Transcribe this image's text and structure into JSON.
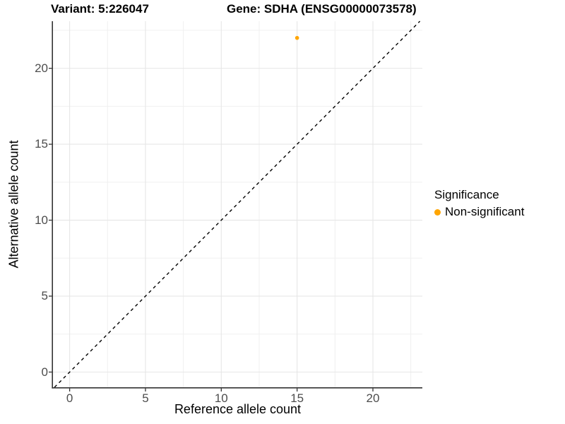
{
  "header": {
    "variant_title": "Variant: 5:226047",
    "gene_title": "Gene: SDHA (ENSG00000073578)"
  },
  "chart_data": {
    "type": "scatter",
    "title_left": "Variant: 5:226047",
    "title_right": "Gene: SDHA (ENSG00000073578)",
    "xlabel": "Reference allele count",
    "ylabel": "Alternative allele count",
    "x_ticks": [
      0,
      5,
      10,
      15,
      20
    ],
    "y_ticks": [
      0,
      5,
      10,
      15,
      20
    ],
    "xlim": [
      -1.1,
      23.26
    ],
    "ylim": [
      -1.0,
      23.1
    ],
    "grid": true,
    "grid_minor_interval": 2.5,
    "identity_line": {
      "slope": 1,
      "intercept": 0,
      "style": "dashed",
      "color": "#000000"
    },
    "series": [
      {
        "name": "Non-significant",
        "color": "#FFA500",
        "points": [
          {
            "x": 15,
            "y": 22
          }
        ]
      }
    ],
    "legend": {
      "title": "Significance",
      "position": "right",
      "entries": [
        {
          "label": "Non-significant",
          "color": "#FFA500"
        }
      ]
    }
  },
  "colors": {
    "background": "#FFFFFF",
    "grid_major": "#E6E6E6",
    "grid_minor": "#F0F0F0",
    "axis_line": "#333333",
    "tick_mark": "#333333",
    "tick_label": "#4D4D4D",
    "text": "#000000"
  }
}
